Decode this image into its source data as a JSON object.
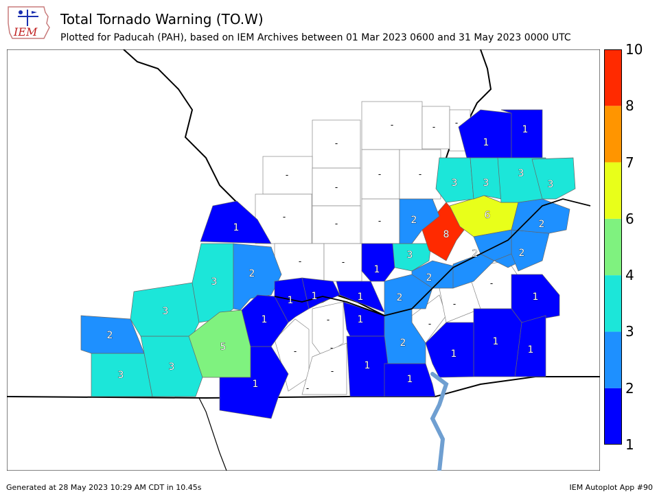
{
  "header": {
    "title": "Total Tornado Warning (TO.W)",
    "subtitle": "Plotted for Paducah (PAH), based on IEM Archives  between 01 Mar 2023 0600 and 31 May 2023 0000 UTC",
    "logo_text": "IEM"
  },
  "colorbar": {
    "labels": [
      "1",
      "2",
      "3",
      "4",
      "6",
      "7",
      "8",
      "10"
    ],
    "bins": [
      {
        "from": 1,
        "to": 2,
        "color": "#0000ff"
      },
      {
        "from": 2,
        "to": 3,
        "color": "#1e90ff"
      },
      {
        "from": 3,
        "to": 4,
        "color": "#1ce6d9"
      },
      {
        "from": 4,
        "to": 6,
        "color": "#7ff27f"
      },
      {
        "from": 6,
        "to": 7,
        "color": "#e8ff1a"
      },
      {
        "from": 7,
        "to": 8,
        "color": "#ff9500"
      },
      {
        "from": 8,
        "to": 10,
        "color": "#ff2a00"
      }
    ]
  },
  "map": {
    "colors": {
      "c1": "#0000ff",
      "c2": "#1e90ff",
      "c3": "#1ce6d9",
      "c5": "#7ff27f",
      "c6": "#e8ff1a",
      "c8": "#ff2a00",
      "none": "#ffffff",
      "river": "#6f9fd1",
      "border": "#000000"
    },
    "counties": [
      {
        "id": "ripley",
        "value": 3
      },
      {
        "id": "butler",
        "value": 2
      },
      {
        "id": "carter",
        "value": 3
      },
      {
        "id": "wayne",
        "value": 3
      },
      {
        "id": "bollinger",
        "value": 3
      },
      {
        "id": "stoddard",
        "value": 5
      },
      {
        "id": "dunklin",
        "value": 1
      },
      {
        "id": "capegirardeau",
        "value": 2
      },
      {
        "id": "perry",
        "value": 1
      },
      {
        "id": "scott",
        "value": 1
      },
      {
        "id": "alexander",
        "value": 1
      },
      {
        "id": "pulaski",
        "value": 1
      },
      {
        "id": "massac",
        "value": 1
      },
      {
        "id": "johnson",
        "value": 1
      },
      {
        "id": "ballard",
        "value": 1
      },
      {
        "id": "mccracken",
        "value": 1
      },
      {
        "id": "graves",
        "value": 1
      },
      {
        "id": "calloway",
        "value": 1
      },
      {
        "id": "marshall",
        "value": 2
      },
      {
        "id": "pope",
        "value": 3
      },
      {
        "id": "livingston",
        "value": 2
      },
      {
        "id": "lyon",
        "value": 2
      },
      {
        "id": "caldwell",
        "value": 2
      },
      {
        "id": "hardin",
        "value": 2
      },
      {
        "id": "crittenden",
        "value": 8
      },
      {
        "id": "union",
        "value": 6
      },
      {
        "id": "webster",
        "value": 2
      },
      {
        "id": "hopkins",
        "value": 2
      },
      {
        "id": "christian",
        "value": 1
      },
      {
        "id": "todd",
        "value": 1
      },
      {
        "id": "trigg",
        "value": 1
      },
      {
        "id": "stewart",
        "value": 1
      },
      {
        "id": "posey",
        "value": 3
      },
      {
        "id": "vanderburgh",
        "value": 3
      },
      {
        "id": "warrick",
        "value": 3
      },
      {
        "id": "henderson",
        "value": 3
      },
      {
        "id": "gibson",
        "value": 1
      },
      {
        "id": "pike",
        "value": 1
      },
      {
        "id": "gallatin",
        "value": 2
      }
    ],
    "no_data_label": "-",
    "values_text": {
      "v1": "1",
      "v2": "2",
      "v3": "3",
      "v5": "5",
      "v6": "6",
      "v8": "8"
    }
  },
  "footer": {
    "left": "Generated at 28 May 2023 10:29 AM CDT in 10.45s",
    "right": "IEM Autoplot App #90"
  }
}
